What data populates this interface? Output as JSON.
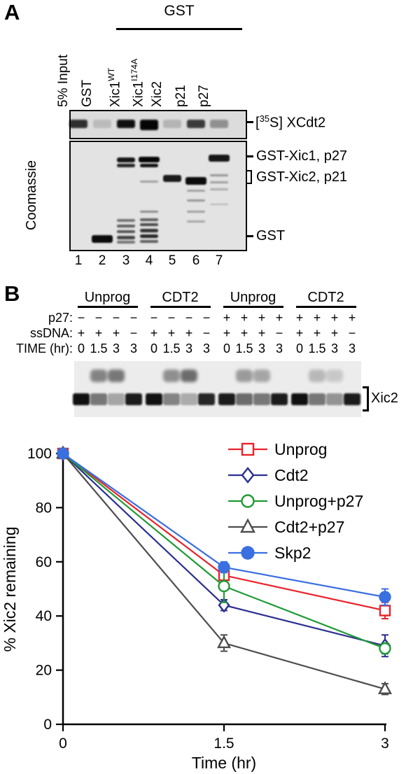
{
  "figure": {
    "panelA": {
      "label": "A",
      "gst_header": "GST",
      "coomassie_label": "Coomassie",
      "lane_labels": [
        {
          "base": "5% Input",
          "sup": ""
        },
        {
          "base": "GST",
          "sup": ""
        },
        {
          "base": "Xic1",
          "sup": "WT"
        },
        {
          "base": "Xic1",
          "sup": "I174A"
        },
        {
          "base": "Xic2",
          "sup": ""
        },
        {
          "base": "p21",
          "sup": ""
        },
        {
          "base": "p27",
          "sup": ""
        }
      ],
      "lane_numbers": [
        "1",
        "2",
        "3",
        "4",
        "5",
        "6",
        "7"
      ],
      "autorad_label": {
        "pre": "[",
        "sup": "35",
        "post": "S] XCdt2"
      },
      "band_labels": [
        "GST-Xic1, p27",
        "GST-Xic2, p21",
        "GST"
      ]
    },
    "panelB": {
      "label": "B",
      "group_headers": [
        "Unprog",
        "CDT2",
        "Unprog",
        "CDT2"
      ],
      "row_labels": [
        "p27:",
        "ssDNA:",
        "TIME (hr):"
      ],
      "rows": {
        "p27": [
          "−",
          "−",
          "−",
          "−",
          "−",
          "−",
          "−",
          "−",
          "+",
          "+",
          "+",
          "+",
          "+",
          "+",
          "+",
          "+"
        ],
        "ssDNA": [
          "+",
          "+",
          "+",
          "−",
          "+",
          "+",
          "+",
          "−",
          "+",
          "+",
          "+",
          "−",
          "+",
          "+",
          "+",
          "−"
        ],
        "time": [
          "0",
          "1.5",
          "3",
          "3",
          "0",
          "1.5",
          "3",
          "3",
          "0",
          "1.5",
          "3",
          "3",
          "0",
          "1.5",
          "3",
          "3"
        ]
      },
      "gel_label": "Xic2"
    }
  },
  "chart_data": {
    "type": "line",
    "x": [
      0,
      1.5,
      3
    ],
    "xlim": [
      0,
      3
    ],
    "ylim": [
      0,
      100
    ],
    "xticks": [
      0,
      1.5,
      3
    ],
    "yticks": [
      0,
      20,
      40,
      60,
      80,
      100
    ],
    "xlabel": "Time (hr)",
    "ylabel": "% Xic2 remaining",
    "legend_position": "top-right",
    "series": [
      {
        "name": "Unprog",
        "marker": "square",
        "fill": "open",
        "color": "#e8232a",
        "values": [
          100,
          55,
          42
        ],
        "errors": [
          0,
          4,
          3
        ]
      },
      {
        "name": "Cdt2",
        "marker": "diamond",
        "fill": "open",
        "color": "#2b2f8f",
        "values": [
          100,
          44,
          29
        ],
        "errors": [
          0,
          2,
          4
        ]
      },
      {
        "name": "Unprog+p27",
        "marker": "circle",
        "fill": "open",
        "color": "#1f9a35",
        "values": [
          100,
          51,
          28
        ],
        "errors": [
          0,
          6,
          2
        ]
      },
      {
        "name": "Cdt2+p27",
        "marker": "triangle",
        "fill": "open",
        "color": "#4d4d4d",
        "values": [
          100,
          30,
          13
        ],
        "errors": [
          0,
          3,
          2
        ]
      },
      {
        "name": "Skp2",
        "marker": "circle",
        "fill": "filled",
        "color": "#3a6fe0",
        "values": [
          100,
          58,
          47
        ],
        "errors": [
          0,
          2,
          3
        ]
      }
    ]
  }
}
